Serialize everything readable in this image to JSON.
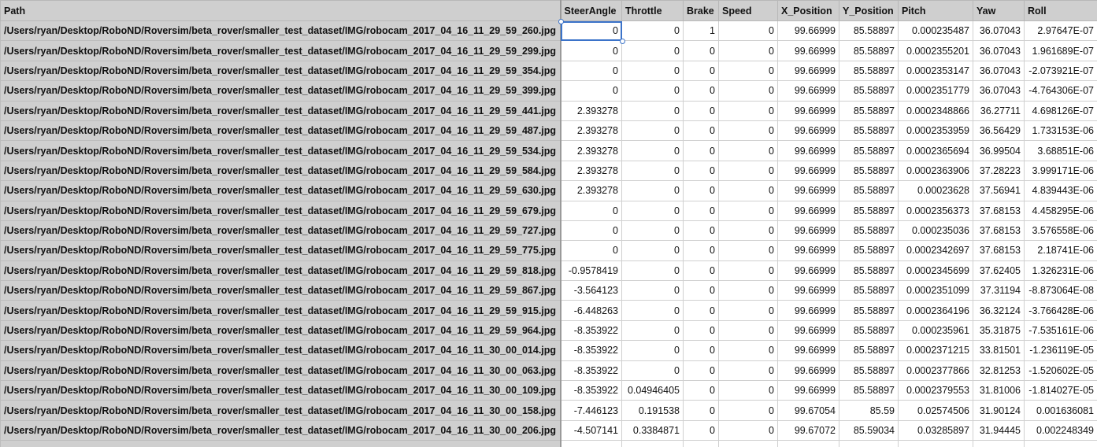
{
  "sheet": {
    "columns": [
      "Path",
      "SteerAngle",
      "Throttle",
      "Brake",
      "Speed",
      "X_Position",
      "Y_Position",
      "Pitch",
      "Yaw",
      "Roll"
    ],
    "selected": {
      "row": 0,
      "col": 1
    },
    "rows": [
      [
        "/Users/ryan/Desktop/RoboND/Roversim/beta_rover/smaller_test_dataset/IMG/robocam_2017_04_16_11_29_59_260.jpg",
        "0",
        "0",
        "1",
        "0",
        "99.66999",
        "85.58897",
        "0.000235487",
        "36.07043",
        "2.97647E-07"
      ],
      [
        "/Users/ryan/Desktop/RoboND/Roversim/beta_rover/smaller_test_dataset/IMG/robocam_2017_04_16_11_29_59_299.jpg",
        "0",
        "0",
        "0",
        "0",
        "99.66999",
        "85.58897",
        "0.0002355201",
        "36.07043",
        "1.961689E-07"
      ],
      [
        "/Users/ryan/Desktop/RoboND/Roversim/beta_rover/smaller_test_dataset/IMG/robocam_2017_04_16_11_29_59_354.jpg",
        "0",
        "0",
        "0",
        "0",
        "99.66999",
        "85.58897",
        "0.0002353147",
        "36.07043",
        "-2.073921E-07"
      ],
      [
        "/Users/ryan/Desktop/RoboND/Roversim/beta_rover/smaller_test_dataset/IMG/robocam_2017_04_16_11_29_59_399.jpg",
        "0",
        "0",
        "0",
        "0",
        "99.66999",
        "85.58897",
        "0.0002351779",
        "36.07043",
        "-4.764306E-07"
      ],
      [
        "/Users/ryan/Desktop/RoboND/Roversim/beta_rover/smaller_test_dataset/IMG/robocam_2017_04_16_11_29_59_441.jpg",
        "2.393278",
        "0",
        "0",
        "0",
        "99.66999",
        "85.58897",
        "0.0002348866",
        "36.27711",
        "4.698126E-07"
      ],
      [
        "/Users/ryan/Desktop/RoboND/Roversim/beta_rover/smaller_test_dataset/IMG/robocam_2017_04_16_11_29_59_487.jpg",
        "2.393278",
        "0",
        "0",
        "0",
        "99.66999",
        "85.58897",
        "0.0002353959",
        "36.56429",
        "1.733153E-06"
      ],
      [
        "/Users/ryan/Desktop/RoboND/Roversim/beta_rover/smaller_test_dataset/IMG/robocam_2017_04_16_11_29_59_534.jpg",
        "2.393278",
        "0",
        "0",
        "0",
        "99.66999",
        "85.58897",
        "0.0002365694",
        "36.99504",
        "3.68851E-06"
      ],
      [
        "/Users/ryan/Desktop/RoboND/Roversim/beta_rover/smaller_test_dataset/IMG/robocam_2017_04_16_11_29_59_584.jpg",
        "2.393278",
        "0",
        "0",
        "0",
        "99.66999",
        "85.58897",
        "0.0002363906",
        "37.28223",
        "3.999171E-06"
      ],
      [
        "/Users/ryan/Desktop/RoboND/Roversim/beta_rover/smaller_test_dataset/IMG/robocam_2017_04_16_11_29_59_630.jpg",
        "2.393278",
        "0",
        "0",
        "0",
        "99.66999",
        "85.58897",
        "0.00023628",
        "37.56941",
        "4.839443E-06"
      ],
      [
        "/Users/ryan/Desktop/RoboND/Roversim/beta_rover/smaller_test_dataset/IMG/robocam_2017_04_16_11_29_59_679.jpg",
        "0",
        "0",
        "0",
        "0",
        "99.66999",
        "85.58897",
        "0.0002356373",
        "37.68153",
        "4.458295E-06"
      ],
      [
        "/Users/ryan/Desktop/RoboND/Roversim/beta_rover/smaller_test_dataset/IMG/robocam_2017_04_16_11_29_59_727.jpg",
        "0",
        "0",
        "0",
        "0",
        "99.66999",
        "85.58897",
        "0.000235036",
        "37.68153",
        "3.576558E-06"
      ],
      [
        "/Users/ryan/Desktop/RoboND/Roversim/beta_rover/smaller_test_dataset/IMG/robocam_2017_04_16_11_29_59_775.jpg",
        "0",
        "0",
        "0",
        "0",
        "99.66999",
        "85.58897",
        "0.0002342697",
        "37.68153",
        "2.18741E-06"
      ],
      [
        "/Users/ryan/Desktop/RoboND/Roversim/beta_rover/smaller_test_dataset/IMG/robocam_2017_04_16_11_29_59_818.jpg",
        "-0.9578419",
        "0",
        "0",
        "0",
        "99.66999",
        "85.58897",
        "0.0002345699",
        "37.62405",
        "1.326231E-06"
      ],
      [
        "/Users/ryan/Desktop/RoboND/Roversim/beta_rover/smaller_test_dataset/IMG/robocam_2017_04_16_11_29_59_867.jpg",
        "-3.564123",
        "0",
        "0",
        "0",
        "99.66999",
        "85.58897",
        "0.0002351099",
        "37.31194",
        "-8.873064E-08"
      ],
      [
        "/Users/ryan/Desktop/RoboND/Roversim/beta_rover/smaller_test_dataset/IMG/robocam_2017_04_16_11_29_59_915.jpg",
        "-6.448263",
        "0",
        "0",
        "0",
        "99.66999",
        "85.58897",
        "0.0002364196",
        "36.32124",
        "-3.766428E-06"
      ],
      [
        "/Users/ryan/Desktop/RoboND/Roversim/beta_rover/smaller_test_dataset/IMG/robocam_2017_04_16_11_29_59_964.jpg",
        "-8.353922",
        "0",
        "0",
        "0",
        "99.66999",
        "85.58897",
        "0.000235961",
        "35.31875",
        "-7.535161E-06"
      ],
      [
        "/Users/ryan/Desktop/RoboND/Roversim/beta_rover/smaller_test_dataset/IMG/robocam_2017_04_16_11_30_00_014.jpg",
        "-8.353922",
        "0",
        "0",
        "0",
        "99.66999",
        "85.58897",
        "0.0002371215",
        "33.81501",
        "-1.236119E-05"
      ],
      [
        "/Users/ryan/Desktop/RoboND/Roversim/beta_rover/smaller_test_dataset/IMG/robocam_2017_04_16_11_30_00_063.jpg",
        "-8.353922",
        "0",
        "0",
        "0",
        "99.66999",
        "85.58897",
        "0.0002377866",
        "32.81253",
        "-1.520602E-05"
      ],
      [
        "/Users/ryan/Desktop/RoboND/Roversim/beta_rover/smaller_test_dataset/IMG/robocam_2017_04_16_11_30_00_109.jpg",
        "-8.353922",
        "0.04946405",
        "0",
        "0",
        "99.66999",
        "85.58897",
        "0.0002379553",
        "31.81006",
        "-1.814027E-05"
      ],
      [
        "/Users/ryan/Desktop/RoboND/Roversim/beta_rover/smaller_test_dataset/IMG/robocam_2017_04_16_11_30_00_158.jpg",
        "-7.446123",
        "0.191538",
        "0",
        "0",
        "99.67054",
        "85.59",
        "0.02574506",
        "31.90124",
        "0.001636081"
      ],
      [
        "/Users/ryan/Desktop/RoboND/Roversim/beta_rover/smaller_test_dataset/IMG/robocam_2017_04_16_11_30_00_206.jpg",
        "-4.507141",
        "0.3384871",
        "0",
        "0",
        "99.67072",
        "85.59034",
        "0.03285897",
        "31.94445",
        "0.002248349"
      ],
      [
        "",
        "",
        "",
        "",
        "",
        "",
        "",
        "",
        "",
        ""
      ]
    ]
  }
}
